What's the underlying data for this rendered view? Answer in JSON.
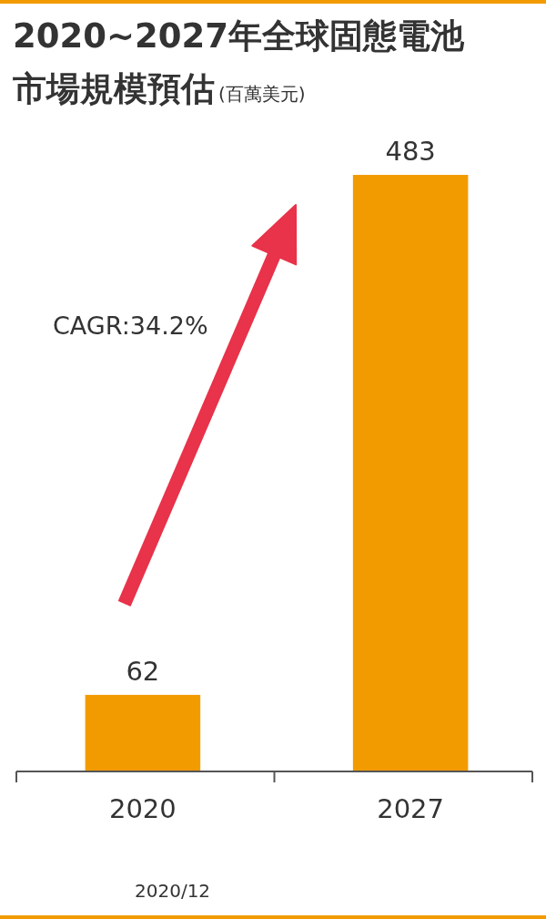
{
  "chart_data": {
    "type": "bar",
    "title": "2020~2027年全球固態電池市場規模預估",
    "subtitle": "(百萬美元)",
    "categories": [
      "2020",
      "2027"
    ],
    "values": [
      62,
      483
    ],
    "color": "#f29b00",
    "data_labels": true,
    "annotations": [
      "CAGR:34.2%",
      "2020/12"
    ]
  }
}
